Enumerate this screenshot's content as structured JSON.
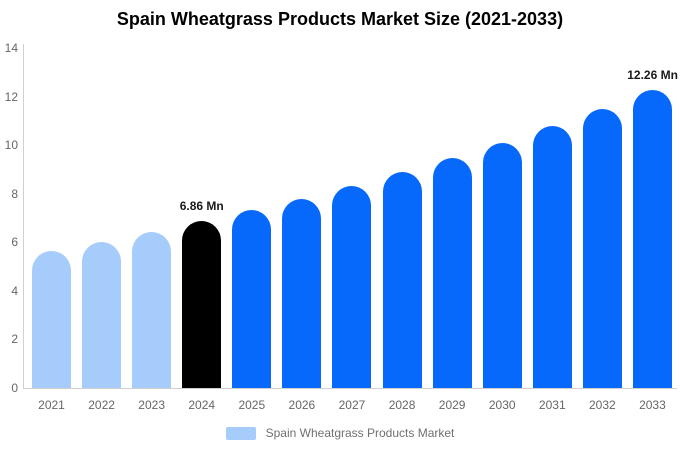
{
  "title": "Spain Wheatgrass Products Market Size (2021-2033)",
  "legend": {
    "label": "Spain Wheatgrass Products Market"
  },
  "colors": {
    "historical_bar": "#A5CCFA",
    "highlight_bar": "#000000",
    "forecast_bar": "#0669FB",
    "axis_line": "#D0D0D0",
    "tick_text": "#666666",
    "annotation_text": "#1A1A1A",
    "legend_text": "#707070",
    "background": "#FFFFFF"
  },
  "chart_data": {
    "type": "bar",
    "title": "Spain Wheatgrass Products Market Size (2021-2033)",
    "unit": "Mn",
    "categories": [
      "2021",
      "2022",
      "2023",
      "2024",
      "2025",
      "2026",
      "2027",
      "2028",
      "2029",
      "2030",
      "2031",
      "2032",
      "2033"
    ],
    "values": [
      5.65,
      6.03,
      6.43,
      6.86,
      7.32,
      7.8,
      8.32,
      8.88,
      9.47,
      10.1,
      10.77,
      11.49,
      12.26
    ],
    "bar_colors": [
      "#A5CCFA",
      "#A5CCFA",
      "#A5CCFA",
      "#000000",
      "#0669FB",
      "#0669FB",
      "#0669FB",
      "#0669FB",
      "#0669FB",
      "#0669FB",
      "#0669FB",
      "#0669FB",
      "#0669FB"
    ],
    "annotations": [
      {
        "category": "2024",
        "text": "6.86 Mn"
      },
      {
        "category": "2033",
        "text": "12.26 Mn"
      }
    ],
    "ylim": [
      0,
      14
    ],
    "yticks": [
      0,
      2,
      4,
      6,
      8,
      10,
      12,
      14
    ],
    "grid": false,
    "xlabel": "",
    "ylabel": "",
    "legend_entries": [
      "Spain Wheatgrass Products Market"
    ],
    "legend_position": "bottom"
  }
}
